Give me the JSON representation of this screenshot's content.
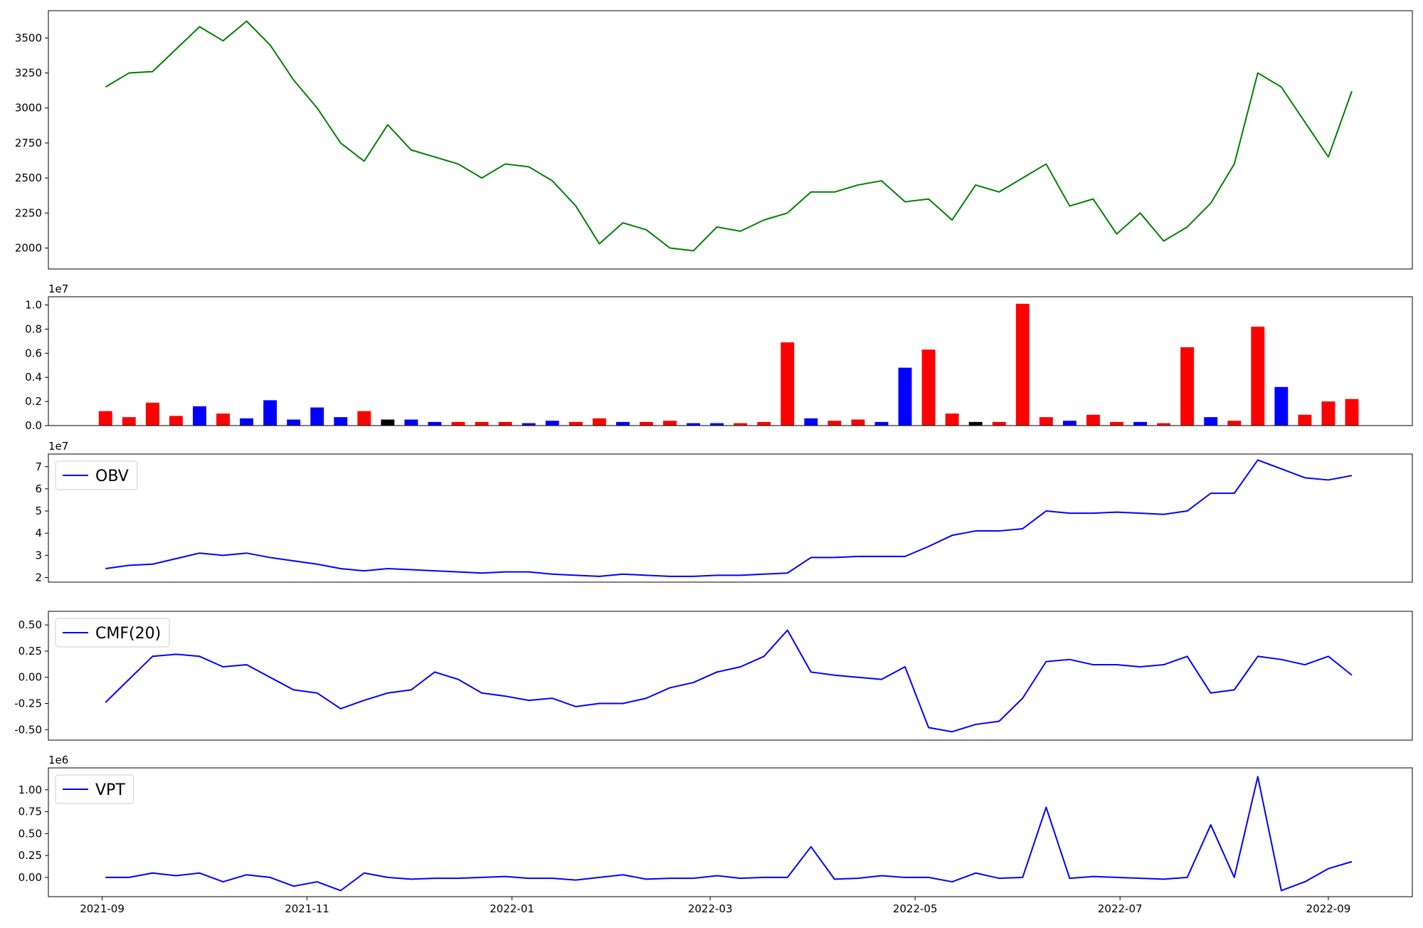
{
  "chart_data": [
    {
      "type": "line",
      "x": [
        "2021-09-02",
        "2021-09-09",
        "2021-09-16",
        "2021-09-23",
        "2021-09-30",
        "2021-10-07",
        "2021-10-14",
        "2021-10-21",
        "2021-10-28",
        "2021-11-04",
        "2021-11-11",
        "2021-11-18",
        "2021-11-25",
        "2021-12-02",
        "2021-12-09",
        "2021-12-16",
        "2021-12-23",
        "2021-12-30",
        "2022-01-06",
        "2022-01-13",
        "2022-01-20",
        "2022-01-27",
        "2022-02-03",
        "2022-02-10",
        "2022-02-17",
        "2022-02-24",
        "2022-03-03",
        "2022-03-10",
        "2022-03-17",
        "2022-03-24",
        "2022-03-31",
        "2022-04-07",
        "2022-04-14",
        "2022-04-21",
        "2022-04-28",
        "2022-05-05",
        "2022-05-12",
        "2022-05-19",
        "2022-05-26",
        "2022-06-02",
        "2022-06-09",
        "2022-06-16",
        "2022-06-23",
        "2022-06-30",
        "2022-07-07",
        "2022-07-14",
        "2022-07-21",
        "2022-07-28",
        "2022-08-04",
        "2022-08-11",
        "2022-08-18",
        "2022-08-25",
        "2022-09-01",
        "2022-09-08"
      ],
      "series": [
        {
          "color": "green",
          "values": [
            3150,
            3250,
            3260,
            3420,
            3580,
            3480,
            3620,
            3450,
            3200,
            3000,
            2750,
            2620,
            2880,
            2700,
            2650,
            2600,
            2500,
            2600,
            2580,
            2480,
            2300,
            2030,
            2180,
            2130,
            2000,
            1980,
            2150,
            2120,
            2200,
            2250,
            2400,
            2400,
            2450,
            2480,
            2330,
            2350,
            2200,
            2450,
            2400,
            2500,
            2600,
            2300,
            2350,
            2100,
            2250,
            2050,
            2150,
            2320,
            2600,
            3250,
            3150,
            2900,
            2650,
            3120
          ]
        }
      ],
      "xlim": [
        "2021-08-16",
        "2022-09-26"
      ],
      "ylim": [
        1850,
        3695
      ],
      "yticks": [
        2000,
        2250,
        2500,
        2750,
        3000,
        3250,
        3500
      ]
    },
    {
      "type": "bar",
      "x": [
        "2021-09-02",
        "2021-09-09",
        "2021-09-16",
        "2021-09-23",
        "2021-09-30",
        "2021-10-07",
        "2021-10-14",
        "2021-10-21",
        "2021-10-28",
        "2021-11-04",
        "2021-11-11",
        "2021-11-18",
        "2021-11-25",
        "2021-12-02",
        "2021-12-09",
        "2021-12-16",
        "2021-12-23",
        "2021-12-30",
        "2022-01-06",
        "2022-01-13",
        "2022-01-20",
        "2022-01-27",
        "2022-02-03",
        "2022-02-10",
        "2022-02-17",
        "2022-02-24",
        "2022-03-03",
        "2022-03-10",
        "2022-03-17",
        "2022-03-24",
        "2022-03-31",
        "2022-04-07",
        "2022-04-14",
        "2022-04-21",
        "2022-04-28",
        "2022-05-05",
        "2022-05-12",
        "2022-05-19",
        "2022-05-26",
        "2022-06-02",
        "2022-06-09",
        "2022-06-16",
        "2022-06-23",
        "2022-06-30",
        "2022-07-07",
        "2022-07-14",
        "2022-07-21",
        "2022-07-28",
        "2022-08-04",
        "2022-08-11",
        "2022-08-18",
        "2022-08-25",
        "2022-09-01",
        "2022-09-08"
      ],
      "values": [
        0.12,
        0.07,
        0.19,
        0.08,
        0.16,
        0.1,
        0.06,
        0.21,
        0.05,
        0.15,
        0.07,
        0.12,
        0.05,
        0.05,
        0.03,
        0.03,
        0.03,
        0.03,
        0.02,
        0.04,
        0.03,
        0.06,
        0.03,
        0.03,
        0.04,
        0.02,
        0.02,
        0.02,
        0.03,
        0.69,
        0.06,
        0.04,
        0.05,
        0.03,
        0.48,
        0.63,
        0.1,
        0.03,
        0.03,
        1.01,
        0.07,
        0.04,
        0.09,
        0.03,
        0.03,
        0.02,
        0.65,
        0.07,
        0.04,
        0.82,
        0.32,
        0.09,
        0.2,
        0.22
      ],
      "colors": [
        "red",
        "red",
        "red",
        "red",
        "blue",
        "red",
        "blue",
        "blue",
        "blue",
        "blue",
        "blue",
        "red",
        "black",
        "blue",
        "blue",
        "red",
        "red",
        "red",
        "blue",
        "blue",
        "red",
        "red",
        "blue",
        "red",
        "red",
        "blue",
        "blue",
        "red",
        "red",
        "red",
        "blue",
        "red",
        "red",
        "blue",
        "blue",
        "red",
        "red",
        "black",
        "red",
        "red",
        "red",
        "blue",
        "red",
        "red",
        "blue",
        "red",
        "red",
        "blue",
        "red",
        "red",
        "blue",
        "red",
        "red",
        "red"
      ],
      "y_offset_label": "1e7",
      "xlim": [
        "2021-08-16",
        "2022-09-26"
      ],
      "ylim": [
        0,
        1.068
      ],
      "yticks": [
        {
          "value": 0,
          "label": "0.0"
        },
        0.2,
        0.4,
        0.6,
        0.8,
        {
          "value": 1,
          "label": "1.0"
        }
      ]
    },
    {
      "type": "line",
      "x": [
        "2021-09-02",
        "2021-09-09",
        "2021-09-16",
        "2021-09-23",
        "2021-09-30",
        "2021-10-07",
        "2021-10-14",
        "2021-10-21",
        "2021-10-28",
        "2021-11-04",
        "2021-11-11",
        "2021-11-18",
        "2021-11-25",
        "2021-12-02",
        "2021-12-09",
        "2021-12-16",
        "2021-12-23",
        "2021-12-30",
        "2022-01-06",
        "2022-01-13",
        "2022-01-20",
        "2022-01-27",
        "2022-02-03",
        "2022-02-10",
        "2022-02-17",
        "2022-02-24",
        "2022-03-03",
        "2022-03-10",
        "2022-03-17",
        "2022-03-24",
        "2022-03-31",
        "2022-04-07",
        "2022-04-14",
        "2022-04-21",
        "2022-04-28",
        "2022-05-05",
        "2022-05-12",
        "2022-05-19",
        "2022-05-26",
        "2022-06-02",
        "2022-06-09",
        "2022-06-16",
        "2022-06-23",
        "2022-06-30",
        "2022-07-07",
        "2022-07-14",
        "2022-07-21",
        "2022-07-28",
        "2022-08-04",
        "2022-08-11",
        "2022-08-18",
        "2022-08-25",
        "2022-09-01",
        "2022-09-08"
      ],
      "series": [
        {
          "name": "OBV",
          "color": "blue",
          "values": [
            2.4,
            2.55,
            2.6,
            2.85,
            3.1,
            3.0,
            3.1,
            2.9,
            2.75,
            2.6,
            2.4,
            2.3,
            2.4,
            2.35,
            2.3,
            2.25,
            2.2,
            2.25,
            2.25,
            2.15,
            2.1,
            2.05,
            2.15,
            2.1,
            2.05,
            2.05,
            2.1,
            2.1,
            2.15,
            2.2,
            2.9,
            2.9,
            2.95,
            2.95,
            2.95,
            3.4,
            3.9,
            4.1,
            4.1,
            4.2,
            5.0,
            4.9,
            4.9,
            4.95,
            4.9,
            4.85,
            5.0,
            5.8,
            5.8,
            7.3,
            6.9,
            6.5,
            6.4,
            6.6
          ]
        }
      ],
      "legend": "upper left",
      "y_offset_label": "1e7",
      "xlim": [
        "2021-08-16",
        "2022-09-26"
      ],
      "ylim": [
        1.79,
        7.57
      ],
      "yticks": [
        2,
        3,
        4,
        5,
        6,
        7
      ]
    },
    {
      "type": "line",
      "x": [
        "2021-09-02",
        "2021-09-09",
        "2021-09-16",
        "2021-09-23",
        "2021-09-30",
        "2021-10-07",
        "2021-10-14",
        "2021-10-21",
        "2021-10-28",
        "2021-11-04",
        "2021-11-11",
        "2021-11-18",
        "2021-11-25",
        "2021-12-02",
        "2021-12-09",
        "2021-12-16",
        "2021-12-23",
        "2021-12-30",
        "2022-01-06",
        "2022-01-13",
        "2022-01-20",
        "2022-01-27",
        "2022-02-03",
        "2022-02-10",
        "2022-02-17",
        "2022-02-24",
        "2022-03-03",
        "2022-03-10",
        "2022-03-17",
        "2022-03-24",
        "2022-03-31",
        "2022-04-07",
        "2022-04-14",
        "2022-04-21",
        "2022-04-28",
        "2022-05-05",
        "2022-05-12",
        "2022-05-19",
        "2022-05-26",
        "2022-06-02",
        "2022-06-09",
        "2022-06-16",
        "2022-06-23",
        "2022-06-30",
        "2022-07-07",
        "2022-07-14",
        "2022-07-21",
        "2022-07-28",
        "2022-08-04",
        "2022-08-11",
        "2022-08-18",
        "2022-08-25",
        "2022-09-01",
        "2022-09-08"
      ],
      "series": [
        {
          "name": "CMF(20)",
          "color": "blue",
          "values": [
            -0.24,
            -0.02,
            0.2,
            0.22,
            0.2,
            0.1,
            0.12,
            0.0,
            -0.12,
            -0.15,
            -0.3,
            -0.22,
            -0.15,
            -0.12,
            0.05,
            -0.02,
            -0.15,
            -0.18,
            -0.22,
            -0.2,
            -0.28,
            -0.25,
            -0.25,
            -0.2,
            -0.1,
            -0.05,
            0.05,
            0.1,
            0.2,
            0.45,
            0.05,
            0.02,
            0.0,
            -0.02,
            0.1,
            -0.48,
            -0.52,
            -0.45,
            -0.42,
            -0.2,
            0.15,
            0.17,
            0.12,
            0.12,
            0.1,
            0.12,
            0.2,
            -0.15,
            -0.12,
            0.2,
            0.17,
            0.12,
            0.2,
            0.02
          ]
        }
      ],
      "legend": "upper left",
      "xlim": [
        "2021-08-16",
        "2022-09-26"
      ],
      "ylim": [
        -0.6,
        0.63
      ],
      "yticks": [
        {
          "value": -0.5,
          "label": "-0.50"
        },
        {
          "value": -0.25,
          "label": "-0.25"
        },
        {
          "value": 0,
          "label": "0.00"
        },
        {
          "value": 0.25,
          "label": "0.25"
        },
        {
          "value": 0.5,
          "label": "0.50"
        }
      ]
    },
    {
      "type": "line",
      "x": [
        "2021-09-02",
        "2021-09-09",
        "2021-09-16",
        "2021-09-23",
        "2021-09-30",
        "2021-10-07",
        "2021-10-14",
        "2021-10-21",
        "2021-10-28",
        "2021-11-04",
        "2021-11-11",
        "2021-11-18",
        "2021-11-25",
        "2021-12-02",
        "2021-12-09",
        "2021-12-16",
        "2021-12-23",
        "2021-12-30",
        "2022-01-06",
        "2022-01-13",
        "2022-01-20",
        "2022-01-27",
        "2022-02-03",
        "2022-02-10",
        "2022-02-17",
        "2022-02-24",
        "2022-03-03",
        "2022-03-10",
        "2022-03-17",
        "2022-03-24",
        "2022-03-31",
        "2022-04-07",
        "2022-04-14",
        "2022-04-21",
        "2022-04-28",
        "2022-05-05",
        "2022-05-12",
        "2022-05-19",
        "2022-05-26",
        "2022-06-02",
        "2022-06-09",
        "2022-06-16",
        "2022-06-23",
        "2022-06-30",
        "2022-07-07",
        "2022-07-14",
        "2022-07-21",
        "2022-07-28",
        "2022-08-04",
        "2022-08-11",
        "2022-08-18",
        "2022-08-25",
        "2022-09-01",
        "2022-09-08"
      ],
      "series": [
        {
          "name": "VPT",
          "color": "blue",
          "values": [
            0.0,
            0.0,
            0.05,
            0.02,
            0.05,
            -0.05,
            0.03,
            0.0,
            -0.1,
            -0.05,
            -0.15,
            0.05,
            0.0,
            -0.02,
            -0.01,
            -0.01,
            0.0,
            0.01,
            -0.01,
            -0.01,
            -0.03,
            0.0,
            0.03,
            -0.02,
            -0.01,
            -0.01,
            0.02,
            -0.01,
            0.0,
            0.0,
            0.35,
            -0.02,
            -0.01,
            0.02,
            0.0,
            0.0,
            -0.05,
            0.05,
            -0.01,
            0.0,
            0.8,
            -0.01,
            0.01,
            0.0,
            -0.01,
            -0.02,
            0.0,
            0.6,
            0.0,
            1.15,
            -0.15,
            -0.05,
            0.1,
            0.18
          ]
        }
      ],
      "legend": "upper left",
      "y_offset_label": "1e6",
      "xlim": [
        "2021-08-16",
        "2022-09-26"
      ],
      "ylim": [
        -0.22,
        1.25
      ],
      "yticks": [
        {
          "value": 0,
          "label": "0.00"
        },
        {
          "value": 0.25,
          "label": "0.25"
        },
        {
          "value": 0.5,
          "label": "0.50"
        },
        {
          "value": 0.75,
          "label": "0.75"
        },
        {
          "value": 1,
          "label": "1.00"
        }
      ],
      "xticks": [
        {
          "value": "2021-09-01",
          "label": "2021-09"
        },
        {
          "value": "2021-11-01",
          "label": "2021-11"
        },
        {
          "value": "2022-01-01",
          "label": "2022-01"
        },
        {
          "value": "2022-03-01",
          "label": "2022-03"
        },
        {
          "value": "2022-05-01",
          "label": "2022-05"
        },
        {
          "value": "2022-07-01",
          "label": "2022-07"
        },
        {
          "value": "2022-09-01",
          "label": "2022-09"
        }
      ]
    }
  ]
}
